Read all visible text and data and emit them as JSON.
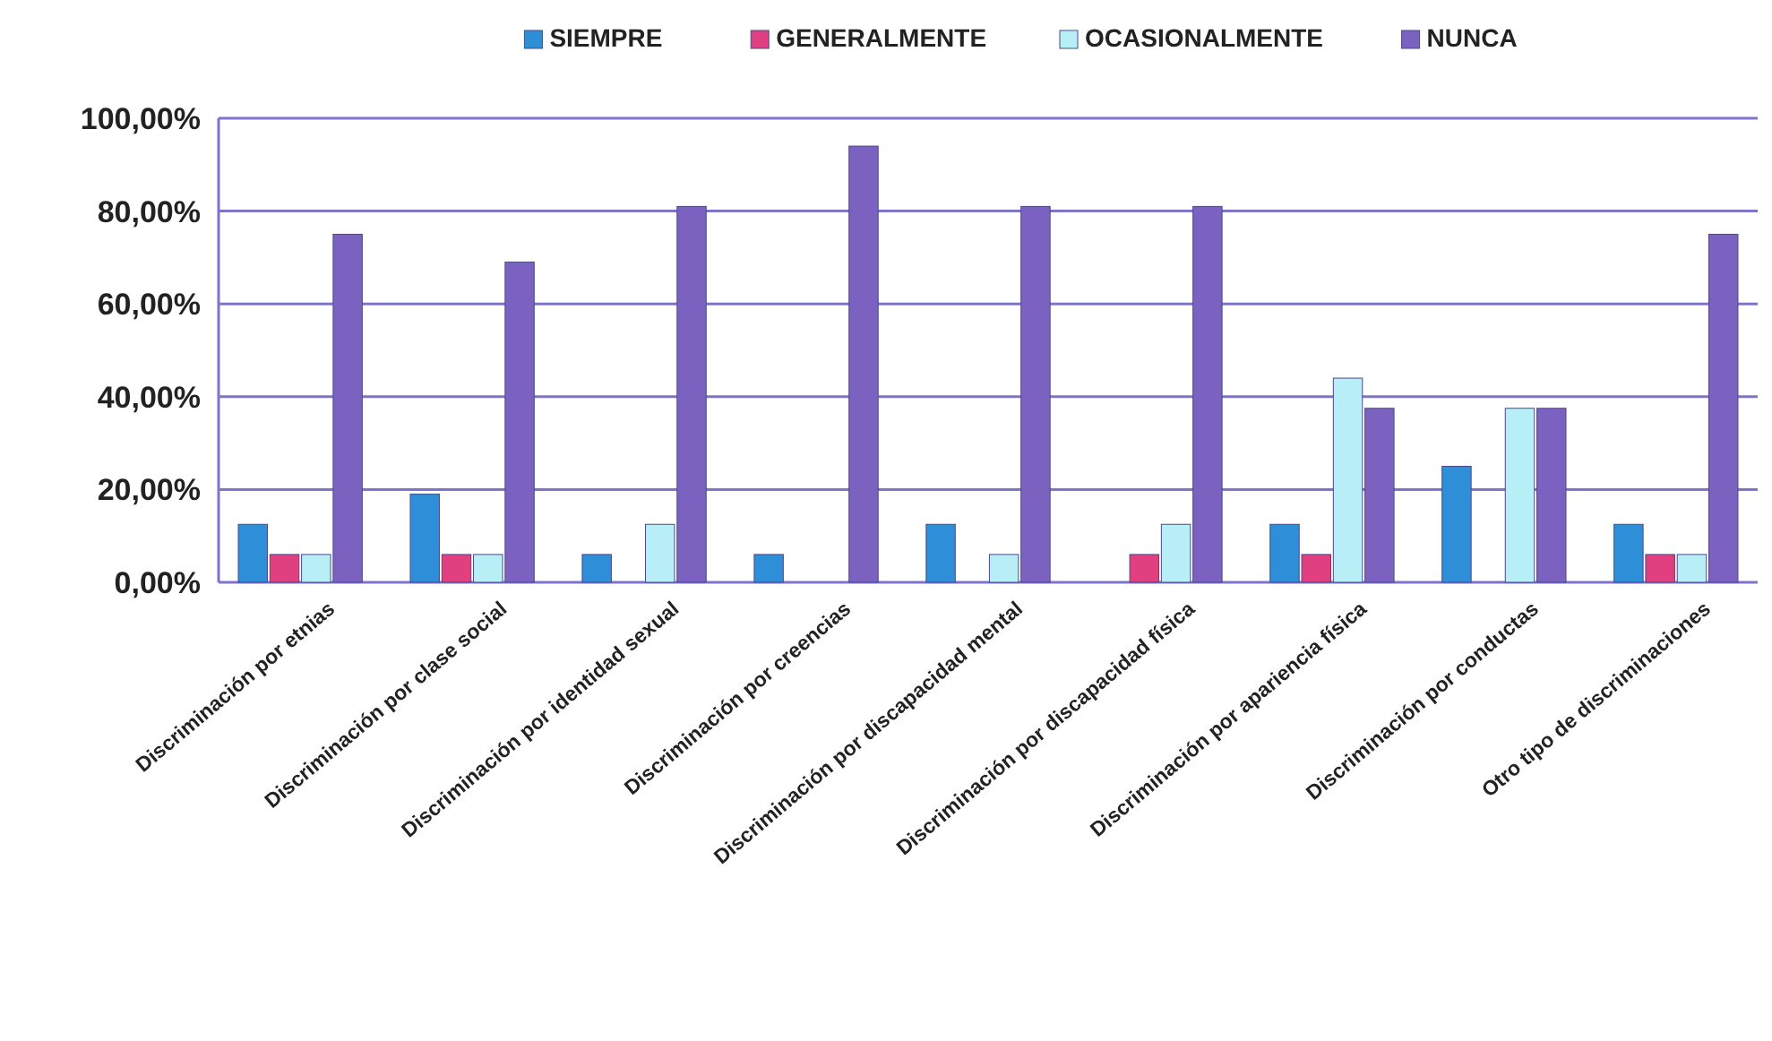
{
  "chart_data": {
    "type": "bar",
    "categories": [
      "Discriminación por etnias",
      "Discriminación por clase social",
      "Discriminación por identidad sexual",
      "Discriminación por creencias",
      "Discriminación por discapacidad mental",
      "Discriminación por discapacidad física",
      "Discriminación por apariencia física",
      "Discriminación por conductas",
      "Otro tipo de discriminaciones"
    ],
    "series": [
      {
        "name": "SIEMPRE",
        "color": "#2e8fd8",
        "values": [
          12.5,
          19,
          6,
          6,
          12.5,
          0,
          12.5,
          25,
          12.5
        ]
      },
      {
        "name": "GENERALMENTE",
        "color": "#e0407f",
        "values": [
          6,
          6,
          0,
          0,
          0,
          6,
          6,
          0,
          6
        ]
      },
      {
        "name": "OCASIONALMENTE",
        "color": "#b8eef5",
        "values": [
          6,
          6,
          12.5,
          0,
          6,
          12.5,
          44,
          37.5,
          6
        ]
      },
      {
        "name": "NUNCA",
        "color": "#7b62c0",
        "values": [
          75,
          69,
          81,
          94,
          81,
          81,
          37.5,
          37.5,
          75
        ]
      }
    ],
    "ylim": [
      0,
      100
    ],
    "yticks": [
      {
        "value": 0,
        "label": "0,00%"
      },
      {
        "value": 20,
        "label": "20,00%"
      },
      {
        "value": 40,
        "label": "40,00%"
      },
      {
        "value": 60,
        "label": "60,00%"
      },
      {
        "value": 80,
        "label": "80,00%"
      },
      {
        "value": 100,
        "label": "100,00%"
      }
    ],
    "grid": "y",
    "legend": "top"
  }
}
